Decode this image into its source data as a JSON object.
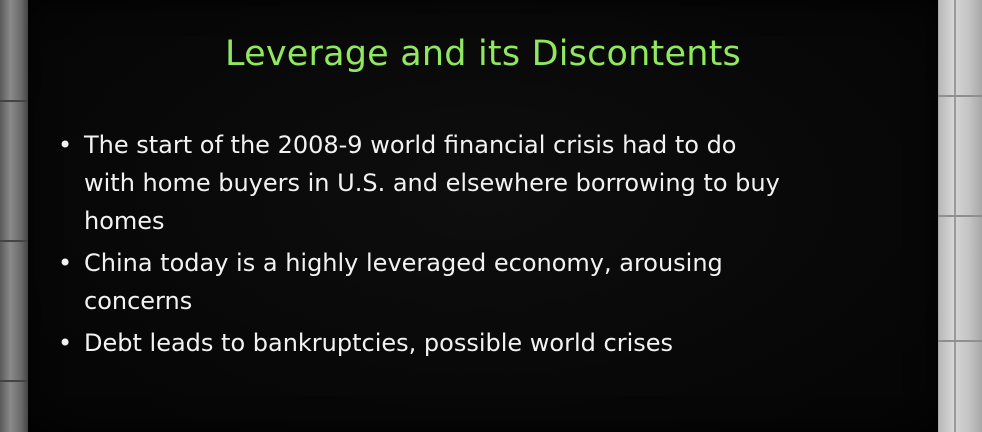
{
  "slide": {
    "title": "Leverage and its Discontents",
    "bullets": [
      {
        "lines": [
          "The start of the 2008-9 world financial crisis had to do",
          "with home buyers in U.S. and elsewhere borrowing to buy",
          "homes"
        ]
      },
      {
        "lines": [
          "China today is a highly leveraged economy, arousing",
          "concerns"
        ]
      },
      {
        "lines": [
          "Debt leads to bankruptcies, possible world crises"
        ]
      }
    ],
    "bullet_glyph": "•"
  },
  "colors": {
    "title": "#8fe85f",
    "text": "#f2f2f2",
    "background": "#070707"
  }
}
